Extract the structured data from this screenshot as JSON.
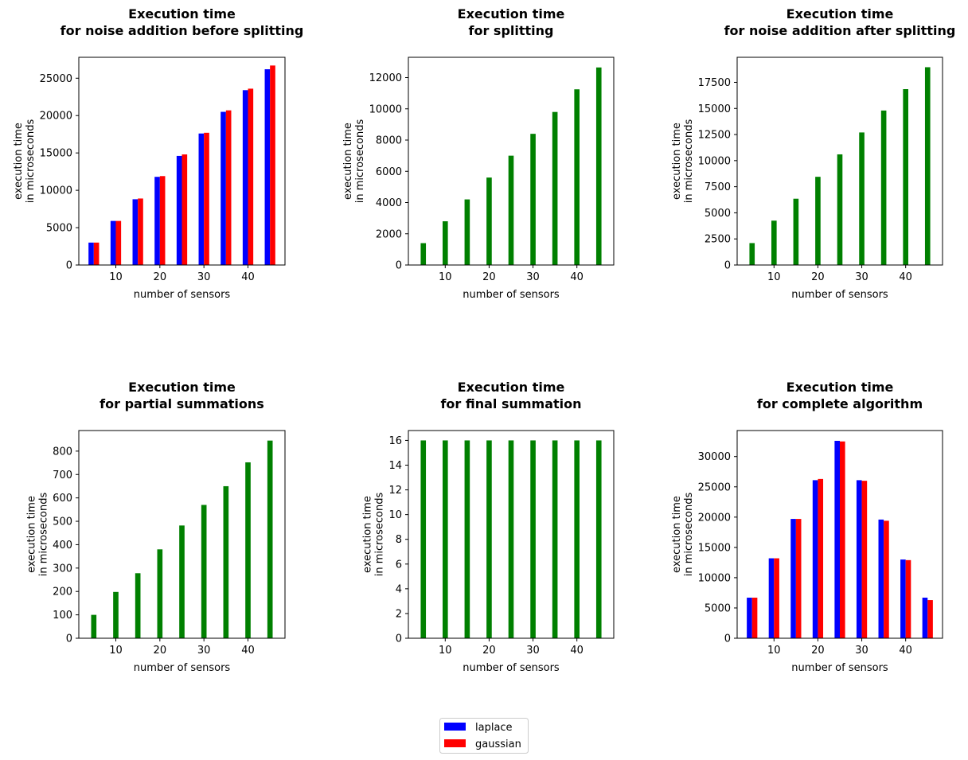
{
  "colors": {
    "laplace": "#0000ff",
    "gaussian": "#ff0000",
    "single": "#008000"
  },
  "legend": {
    "entries": [
      {
        "label": "laplace",
        "color": "#0000ff"
      },
      {
        "label": "gaussian",
        "color": "#ff0000"
      }
    ]
  },
  "chart_data": [
    {
      "type": "bar",
      "title_lines": [
        "Execution time",
        "for noise addition before splitting"
      ],
      "xlabel": "number of sensors",
      "ylabel_lines": [
        "execution time",
        "in microseconds"
      ],
      "x": [
        5,
        10,
        15,
        20,
        25,
        30,
        35,
        40,
        45
      ],
      "xticks": [
        10,
        20,
        30,
        40
      ],
      "xlim": [
        1.6,
        48.4
      ],
      "yticks": [
        0,
        5000,
        10000,
        15000,
        20000,
        25000
      ],
      "ylim": [
        0,
        27800
      ],
      "series": [
        {
          "name": "laplace",
          "values": [
            3000,
            5900,
            8800,
            11800,
            14600,
            17600,
            20500,
            23400,
            26200
          ]
        },
        {
          "name": "gaussian",
          "values": [
            3000,
            5900,
            8900,
            11900,
            14800,
            17700,
            20700,
            23600,
            26700
          ]
        }
      ]
    },
    {
      "type": "bar",
      "title_lines": [
        "Execution time",
        "for splitting"
      ],
      "xlabel": "number of sensors",
      "ylabel_lines": [
        "execution time",
        "in microseconds"
      ],
      "x": [
        5,
        10,
        15,
        20,
        25,
        30,
        35,
        40,
        45
      ],
      "xticks": [
        10,
        20,
        30,
        40
      ],
      "xlim": [
        1.6,
        48.4
      ],
      "yticks": [
        0,
        2000,
        4000,
        6000,
        8000,
        10000,
        12000
      ],
      "ylim": [
        0,
        13300
      ],
      "series": [
        {
          "values": [
            1400,
            2800,
            4200,
            5600,
            7000,
            8400,
            9800,
            11250,
            12650
          ]
        }
      ]
    },
    {
      "type": "bar",
      "title_lines": [
        "Execution time",
        "for noise addition after splitting"
      ],
      "xlabel": "number of sensors",
      "ylabel_lines": [
        "execution time",
        "in microseconds"
      ],
      "x": [
        5,
        10,
        15,
        20,
        25,
        30,
        35,
        40,
        45
      ],
      "xticks": [
        10,
        20,
        30,
        40
      ],
      "xlim": [
        1.6,
        48.4
      ],
      "yticks": [
        0,
        2500,
        5000,
        7500,
        10000,
        12500,
        15000,
        17500
      ],
      "ylim": [
        0,
        19900
      ],
      "series": [
        {
          "values": [
            2100,
            4250,
            6350,
            8450,
            10600,
            12700,
            14800,
            16850,
            18950
          ]
        }
      ]
    },
    {
      "type": "bar",
      "title_lines": [
        "Execution time",
        "for partial summations"
      ],
      "xlabel": "number of sensors",
      "ylabel_lines": [
        "execution time",
        "in microseconds"
      ],
      "x": [
        5,
        10,
        15,
        20,
        25,
        30,
        35,
        40,
        45
      ],
      "xticks": [
        10,
        20,
        30,
        40
      ],
      "xlim": [
        1.6,
        48.4
      ],
      "yticks": [
        0,
        100,
        200,
        300,
        400,
        500,
        600,
        700,
        800
      ],
      "ylim": [
        0,
        888
      ],
      "series": [
        {
          "values": [
            100,
            198,
            278,
            380,
            482,
            570,
            650,
            752,
            845
          ]
        }
      ]
    },
    {
      "type": "bar",
      "title_lines": [
        "Execution time",
        "for final summation"
      ],
      "xlabel": "number of sensors",
      "ylabel_lines": [
        "execution time",
        "in microseconds"
      ],
      "x": [
        5,
        10,
        15,
        20,
        25,
        30,
        35,
        40,
        45
      ],
      "xticks": [
        10,
        20,
        30,
        40
      ],
      "xlim": [
        1.6,
        48.4
      ],
      "yticks": [
        0,
        2,
        4,
        6,
        8,
        10,
        12,
        14,
        16
      ],
      "ylim": [
        0,
        16.8
      ],
      "series": [
        {
          "values": [
            16,
            16,
            16,
            16,
            16,
            16,
            16,
            16,
            16
          ]
        }
      ]
    },
    {
      "type": "bar",
      "title_lines": [
        "Execution time",
        "for complete algorithm"
      ],
      "xlabel": "number of sensors",
      "ylabel_lines": [
        "execution time",
        "in microseconds"
      ],
      "x": [
        5,
        10,
        15,
        20,
        25,
        30,
        35,
        40,
        45
      ],
      "xticks": [
        10,
        20,
        30,
        40
      ],
      "xlim": [
        1.6,
        48.4
      ],
      "yticks": [
        0,
        5000,
        10000,
        15000,
        20000,
        25000,
        30000
      ],
      "ylim": [
        0,
        34300
      ],
      "series": [
        {
          "name": "laplace",
          "values": [
            6700,
            13200,
            19700,
            26100,
            32600,
            26100,
            19600,
            13000,
            6700
          ]
        },
        {
          "name": "gaussian",
          "values": [
            6700,
            13200,
            19700,
            26300,
            32500,
            26000,
            19400,
            12900,
            6300
          ]
        }
      ]
    }
  ]
}
